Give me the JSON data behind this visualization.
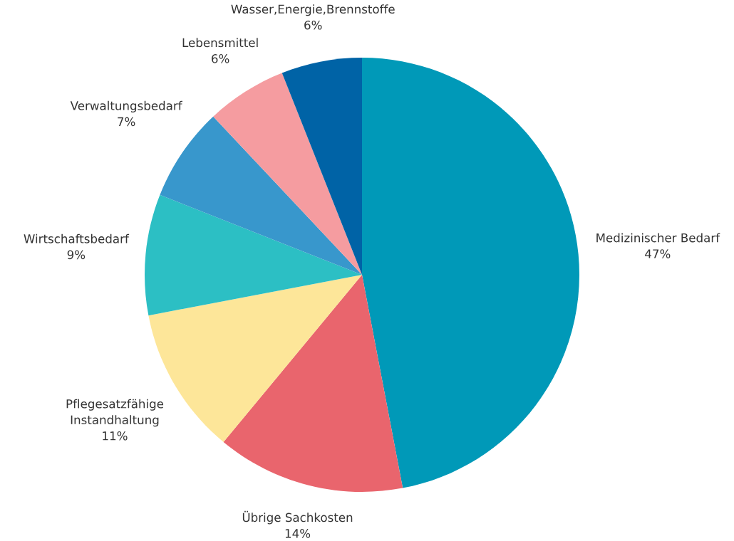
{
  "chart_data": {
    "type": "pie",
    "categories": [
      "Medizinischer Bedarf",
      "Übrige Sachkosten",
      "Pflegesatzfähige\nInstandhaltung",
      "Wirtschaftsbedarf",
      "Verwaltungsbedarf",
      "Lebensmittel",
      "Wasser,Energie,Brennstoffe"
    ],
    "values": [
      47,
      14,
      11,
      9,
      7,
      6,
      6
    ],
    "value_labels": [
      "47%",
      "14%",
      "11%",
      "9%",
      "7%",
      "6%",
      "6%"
    ],
    "colors": [
      "#0099b8",
      "#e9656d",
      "#fde699",
      "#2cbfc4",
      "#3897cc",
      "#f59ca0",
      "#0063a6"
    ]
  }
}
